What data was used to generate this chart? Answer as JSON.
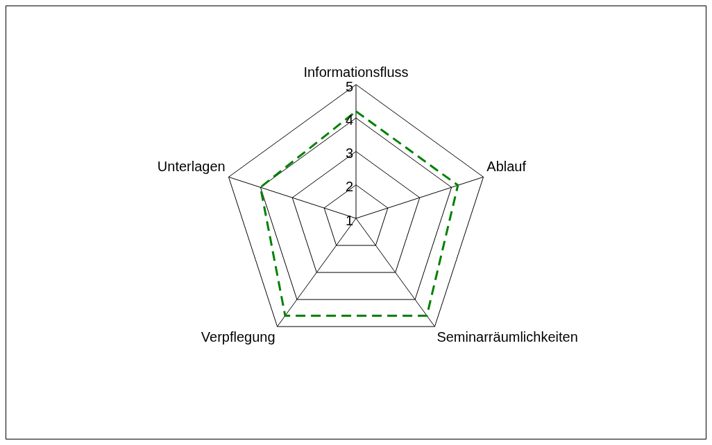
{
  "chart_data": {
    "type": "radar",
    "categories": [
      "Informationsfluss",
      "Ablauf",
      "Seminarräumlichkeiten",
      "Verpflegung",
      "Unterlagen"
    ],
    "series": [
      {
        "color": "#008000",
        "values": [
          4.2,
          4.2,
          4.6,
          4.6,
          4.0
        ]
      }
    ],
    "ylim": [
      1,
      5
    ],
    "yticks": [
      1,
      2,
      3,
      4,
      5
    ],
    "grid": true,
    "legend": false,
    "marker": "none",
    "line_style": "dashed"
  }
}
